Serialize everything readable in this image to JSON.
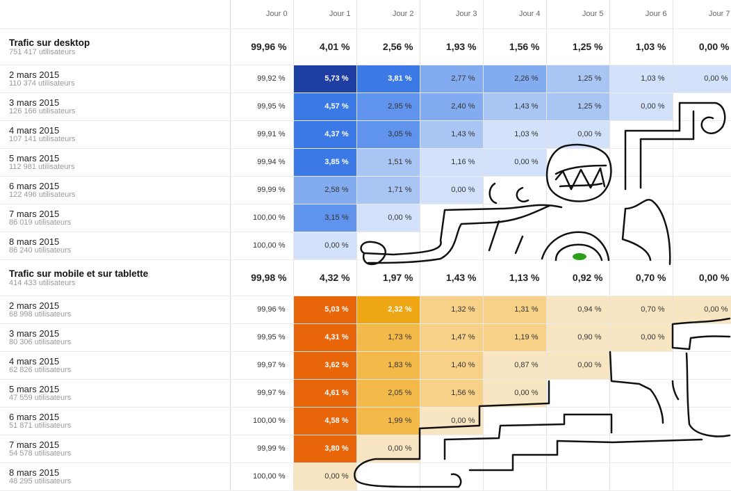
{
  "days": [
    "Jour 0",
    "Jour 1",
    "Jour 2",
    "Jour 3",
    "Jour 4",
    "Jour 5",
    "Jour 6",
    "Jour 7"
  ],
  "segments": [
    {
      "title": "Trafic sur desktop",
      "users": "751 417 utilisateurs",
      "palette": "blue",
      "totals": [
        "99,96 %",
        "4,01 %",
        "2,56 %",
        "1,93 %",
        "1,56 %",
        "1,25 %",
        "1,03 %",
        "0,00 %"
      ],
      "cohorts": [
        {
          "date": "2 mars 2015",
          "users": "110 374 utilisateurs",
          "values": [
            "99,92 %",
            "5,73 %",
            "3,81 %",
            "2,77 %",
            "2,26 %",
            "1,25 %",
            "1,03 %",
            "0,00 %"
          ]
        },
        {
          "date": "3 mars 2015",
          "users": "126 166 utilisateurs",
          "values": [
            "99,95 %",
            "4,57 %",
            "2,95 %",
            "2,40 %",
            "1,43 %",
            "1,25 %",
            "0,00 %"
          ]
        },
        {
          "date": "4 mars 2015",
          "users": "107 141 utilisateurs",
          "values": [
            "99,91 %",
            "4,37 %",
            "3,05 %",
            "1,43 %",
            "1,03 %",
            "0,00 %"
          ]
        },
        {
          "date": "5 mars 2015",
          "users": "112 981 utilisateurs",
          "values": [
            "99,94 %",
            "3,85 %",
            "1,51 %",
            "1,16 %",
            "0,00 %"
          ]
        },
        {
          "date": "6 mars 2015",
          "users": "122 496 utilisateurs",
          "values": [
            "99,99 %",
            "2,58 %",
            "1,71 %",
            "0,00 %"
          ]
        },
        {
          "date": "7 mars 2015",
          "users": "86 019 utilisateurs",
          "values": [
            "100,00 %",
            "3,15 %",
            "0,00 %"
          ]
        },
        {
          "date": "8 mars 2015",
          "users": "86 240 utilisateurs",
          "values": [
            "100,00 %",
            "0,00 %"
          ]
        }
      ]
    },
    {
      "title": "Trafic sur mobile et sur tablette",
      "users": "414 433 utilisateurs",
      "palette": "orange",
      "totals": [
        "99,98 %",
        "4,32 %",
        "1,97 %",
        "1,43 %",
        "1,13 %",
        "0,92 %",
        "0,70 %",
        "0,00 %"
      ],
      "cohorts": [
        {
          "date": "2 mars 2015",
          "users": "68 998 utilisateurs",
          "values": [
            "99,96 %",
            "5,03 %",
            "2,32 %",
            "1,32 %",
            "1,31 %",
            "0,94 %",
            "0,70 %",
            "0,00 %"
          ]
        },
        {
          "date": "3 mars 2015",
          "users": "80 306 utilisateurs",
          "values": [
            "99,95 %",
            "4,31 %",
            "1,73 %",
            "1,47 %",
            "1,19 %",
            "0,90 %",
            "0,00 %"
          ]
        },
        {
          "date": "4 mars 2015",
          "users": "62 826 utilisateurs",
          "values": [
            "99,97 %",
            "3,62 %",
            "1,83 %",
            "1,40 %",
            "0,87 %",
            "0,00 %"
          ]
        },
        {
          "date": "5 mars 2015",
          "users": "47 559 utilisateurs",
          "values": [
            "99,97 %",
            "4,61 %",
            "2,05 %",
            "1,56 %",
            "0,00 %"
          ]
        },
        {
          "date": "6 mars 2015",
          "users": "51 871 utilisateurs",
          "values": [
            "100,00 %",
            "4,58 %",
            "1,99 %",
            "0,00 %"
          ]
        },
        {
          "date": "7 mars 2015",
          "users": "54 578 utilisateurs",
          "values": [
            "99,99 %",
            "3,80 %",
            "0,00 %"
          ]
        },
        {
          "date": "8 mars 2015",
          "users": "48 295 utilisateurs",
          "values": [
            "100,00 %",
            "0,00 %"
          ]
        }
      ]
    }
  ],
  "palettes": {
    "blue": [
      "#d3e1fa",
      "#a9c5f4",
      "#83acf0",
      "#5f93ec",
      "#3b79e6",
      "#1f3ea3"
    ],
    "orange": [
      "#f8e6c3",
      "#f8d189",
      "#f4ba49",
      "#eea614",
      "#e8650a"
    ]
  },
  "scribble_color": "#111111",
  "scribble_accent": "#2ea11a"
}
